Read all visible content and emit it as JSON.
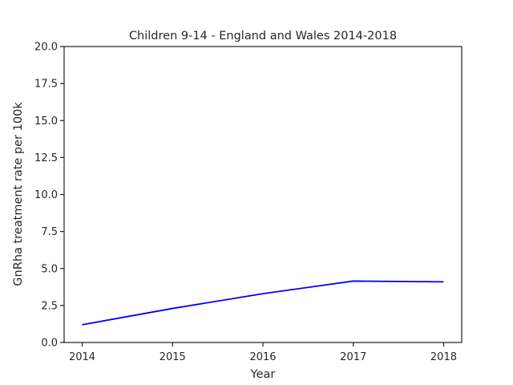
{
  "chart_data": {
    "type": "line",
    "title": "Children 9-14 - England and Wales 2014-2018",
    "xlabel": "Year",
    "ylabel": "GnRha treatment rate per 100k",
    "x": [
      2014,
      2015,
      2016,
      2017,
      2018
    ],
    "x_tick_labels": [
      "2014",
      "2015",
      "2016",
      "2017",
      "2018"
    ],
    "y_tick_labels": [
      "0.0",
      "2.5",
      "5.0",
      "7.5",
      "10.0",
      "12.5",
      "15.0",
      "17.5",
      "20.0"
    ],
    "y_ticks": [
      0,
      2.5,
      5,
      7.5,
      10,
      12.5,
      15,
      17.5,
      20
    ],
    "ylim": [
      0,
      20
    ],
    "xlim": [
      2013.8,
      2018.2
    ],
    "grid": false,
    "series": [
      {
        "values": [
          1.2,
          2.3,
          3.3,
          4.15,
          4.1
        ],
        "color": "#0000ff"
      }
    ]
  }
}
